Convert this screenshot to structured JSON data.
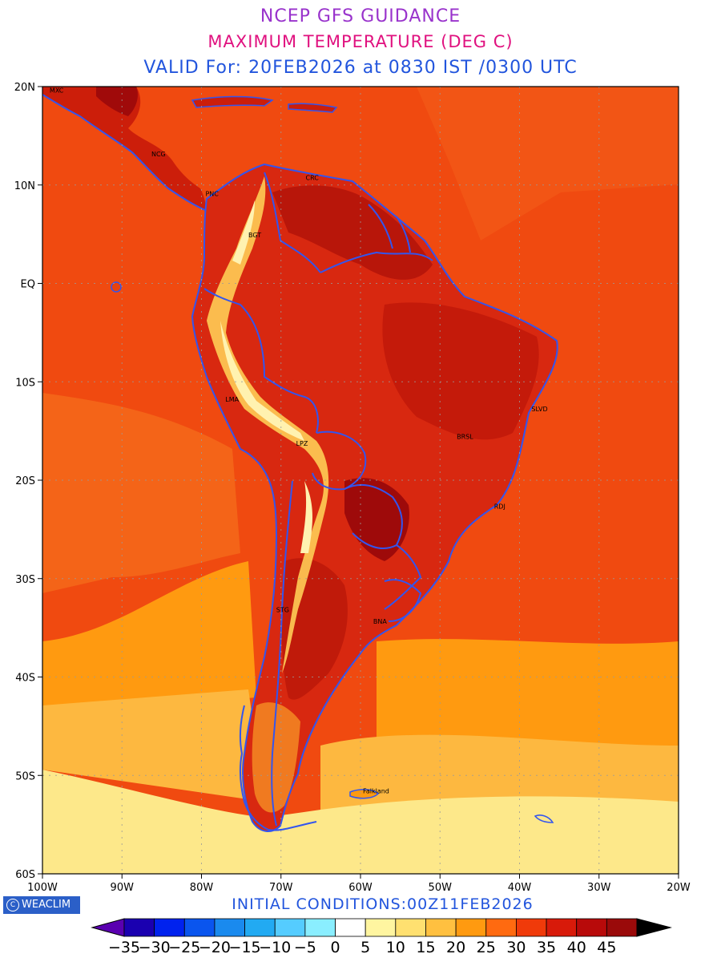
{
  "titles": {
    "line1": "NCEP GFS GUIDANCE",
    "line2": "MAXIMUM TEMPERATURE (DEG C)",
    "line3": "VALID For: 20FEB2026 at 0830 IST /0300 UTC"
  },
  "map": {
    "region": "South America",
    "lon_range": [
      -100,
      -20
    ],
    "lat_range": [
      -60,
      20
    ],
    "lat_ticks": [
      {
        "value": 20,
        "label": "20N"
      },
      {
        "value": 10,
        "label": "10N"
      },
      {
        "value": 0,
        "label": "EQ"
      },
      {
        "value": -10,
        "label": "10S"
      },
      {
        "value": -20,
        "label": "20S"
      },
      {
        "value": -30,
        "label": "30S"
      },
      {
        "value": -40,
        "label": "40S"
      },
      {
        "value": -50,
        "label": "50S"
      },
      {
        "value": -60,
        "label": "60S"
      }
    ],
    "lon_ticks": [
      {
        "value": -100,
        "label": "100W"
      },
      {
        "value": -90,
        "label": "90W"
      },
      {
        "value": -80,
        "label": "80W"
      },
      {
        "value": -70,
        "label": "70W"
      },
      {
        "value": -60,
        "label": "60W"
      },
      {
        "value": -50,
        "label": "50W"
      },
      {
        "value": -40,
        "label": "40W"
      },
      {
        "value": -30,
        "label": "30W"
      },
      {
        "value": -20,
        "label": "20W"
      }
    ],
    "cities": [
      {
        "label": "MXC",
        "lon": -99.1,
        "lat": 19.4
      },
      {
        "label": "NCG",
        "lon": -86.3,
        "lat": 12.9
      },
      {
        "label": "CRC",
        "lon": -66.9,
        "lat": 10.5
      },
      {
        "label": "PNC",
        "lon": -79.5,
        "lat": 8.9
      },
      {
        "label": "BGT",
        "lon": -74.1,
        "lat": 4.7
      },
      {
        "label": "LMA",
        "lon": -77.0,
        "lat": -12.0
      },
      {
        "label": "LPZ",
        "lon": -68.1,
        "lat": -16.5
      },
      {
        "label": "BRSL",
        "lon": -47.9,
        "lat": -15.8
      },
      {
        "label": "SLVD",
        "lon": -38.5,
        "lat": -13.0
      },
      {
        "label": "RDJ",
        "lon": -43.2,
        "lat": -22.9
      },
      {
        "label": "STG",
        "lon": -70.6,
        "lat": -33.4
      },
      {
        "label": "BNA",
        "lon": -58.4,
        "lat": -34.6
      },
      {
        "label": "Falkland",
        "lon": -59.7,
        "lat": -51.8
      }
    ],
    "colors": {
      "ocean_warm": "#f04a10",
      "land_hot": "#cc1e0a",
      "land_very_hot": "#aa0a0a",
      "andes_cool": "#ffe08a",
      "ocean_mid": "#ff7a20",
      "ocean_cool": "#ffa020",
      "ocean_cold": "#fdc050",
      "ocean_coldest": "#fde88a",
      "border": "#3355ee"
    }
  },
  "footer": {
    "logo": "WEACLIM",
    "logo_symbol": "C",
    "initial_conditions": "INITIAL CONDITIONS:00Z11FEB2026"
  },
  "colorbar": {
    "labels": [
      "-35",
      "-30",
      "-25",
      "-20",
      "-15",
      "-10",
      "-5",
      "0",
      "5",
      "10",
      "15",
      "20",
      "25",
      "30",
      "35",
      "40",
      "45"
    ],
    "colors": [
      "#1a00b0",
      "#0022ee",
      "#0a55ee",
      "#1a8aee",
      "#22aaf2",
      "#55ccff",
      "#8aeeff",
      "#ffffff",
      "#fff5a0",
      "#ffe070",
      "#ffc040",
      "#ff9a10",
      "#ff6a10",
      "#f03a0a",
      "#d81a0a",
      "#b80a0a",
      "#9a0a0a"
    ],
    "under_color": "#5a00b0",
    "over_color": "#000000"
  }
}
